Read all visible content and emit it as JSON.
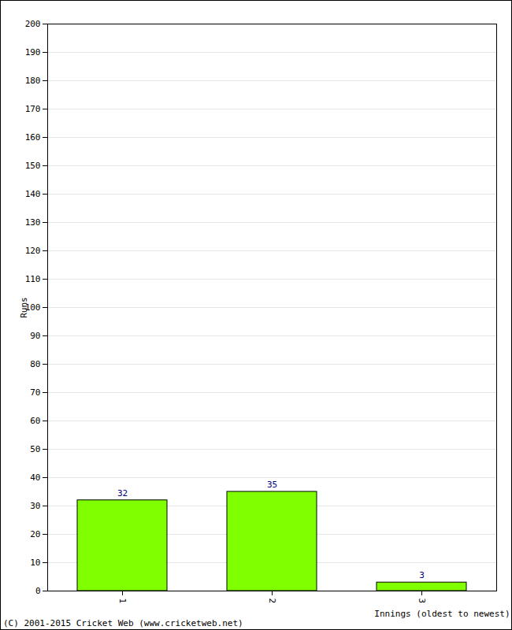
{
  "chart_data": {
    "type": "bar",
    "categories": [
      "1",
      "2",
      "3"
    ],
    "values": [
      32,
      35,
      3
    ],
    "color": "#80ff00",
    "x_label": "Innings (oldest to newest)",
    "y_label": "Runs",
    "caption": "(C) 2001-2015 Cricket Web (www.cricketweb.net)",
    "ylim": [
      0,
      200
    ],
    "yticks": [
      0,
      10,
      20,
      30,
      40,
      50,
      60,
      70,
      80,
      90,
      100,
      110,
      120,
      130,
      140,
      150,
      160,
      170,
      180,
      190,
      200
    ],
    "grid": true,
    "data_labels": true
  }
}
